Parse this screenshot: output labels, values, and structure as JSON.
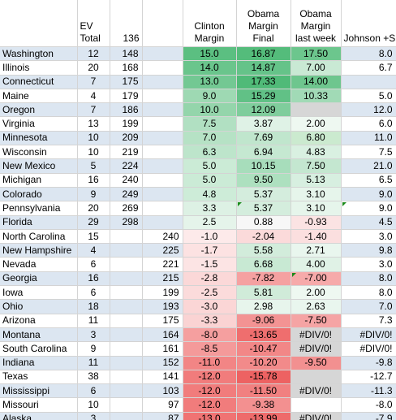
{
  "header": {
    "state": "",
    "ev_total": "EV\nTotal",
    "running": "136",
    "extra": "",
    "clinton": "Clinton\nMargin",
    "obama_final": "Obama\nMargin\nFinal",
    "obama_last_week": "Obama\nMargin\nlast week",
    "johnson": "Johnson +S"
  },
  "rows": [
    {
      "state": "Washington",
      "ev": "12",
      "dem_total": "148",
      "rep_total": "",
      "clinton": "15.0",
      "obama_final": "16.87",
      "obama_lw": "17.50",
      "johnson": "8.0",
      "band": true,
      "c_clinton": "#5bbf81",
      "c_final": "#54bc7b",
      "c_lw": "#6cc68d"
    },
    {
      "state": "Illinois",
      "ev": "20",
      "dem_total": "168",
      "rep_total": "",
      "clinton": "14.0",
      "obama_final": "14.87",
      "obama_lw": "7.00",
      "johnson": "6.7",
      "band": false,
      "c_clinton": "#6ac58c",
      "c_final": "#65c389",
      "c_lw": "#c9e9d4"
    },
    {
      "state": "Connecticut",
      "ev": "7",
      "dem_total": "175",
      "rep_total": "",
      "clinton": "13.0",
      "obama_final": "17.33",
      "obama_lw": "14.00",
      "johnson": "",
      "band": true,
      "c_clinton": "#73c893",
      "c_final": "#50ba78",
      "c_lw": "#6ec68e"
    },
    {
      "state": "Maine",
      "ev": "4",
      "dem_total": "179",
      "rep_total": "",
      "clinton": "9.0",
      "obama_final": "15.29",
      "obama_lw": "10.33",
      "johnson": "5.0",
      "band": false,
      "c_clinton": "#9ed9b3",
      "c_final": "#61c186",
      "c_lw": "#a1dab6"
    },
    {
      "state": "Oregon",
      "ev": "7",
      "dem_total": "186",
      "rep_total": "",
      "clinton": "10.0",
      "obama_final": "12.09",
      "obama_lw": "",
      "johnson": "12.0",
      "band": true,
      "c_clinton": "#94d5ab",
      "c_final": "#7fcd9c",
      "c_lw": "#d6d6d6"
    },
    {
      "state": "Virginia",
      "ev": "13",
      "dem_total": "199",
      "rep_total": "",
      "clinton": "7.5",
      "obama_final": "3.87",
      "obama_lw": "2.00",
      "johnson": "6.0",
      "band": false,
      "c_clinton": "#b1e0c2",
      "c_final": "#dff2e6",
      "c_lw": "#eef8f1"
    },
    {
      "state": "Minnesota",
      "ev": "10",
      "dem_total": "209",
      "rep_total": "",
      "clinton": "7.0",
      "obama_final": "7.69",
      "obama_lw": "6.80",
      "johnson": "11.0",
      "band": true,
      "c_clinton": "#b6e2c5",
      "c_final": "#c0e6cd",
      "c_lw": "#cbeacf"
    },
    {
      "state": "Wisconsin",
      "ev": "10",
      "dem_total": "219",
      "rep_total": "",
      "clinton": "6.3",
      "obama_final": "6.94",
      "obama_lw": "4.83",
      "johnson": "7.5",
      "band": false,
      "c_clinton": "#bde5cb",
      "c_final": "#c5e8d1",
      "c_lw": "#d9f0e1"
    },
    {
      "state": "New Mexico",
      "ev": "5",
      "dem_total": "224",
      "rep_total": "",
      "clinton": "5.0",
      "obama_final": "10.15",
      "obama_lw": "7.50",
      "johnson": "21.0",
      "band": true,
      "c_clinton": "#cbebd6",
      "c_final": "#a7ddbb",
      "c_lw": "#c4e7d0"
    },
    {
      "state": "Michigan",
      "ev": "16",
      "dem_total": "240",
      "rep_total": "",
      "clinton": "5.0",
      "obama_final": "9.50",
      "obama_lw": "5.13",
      "johnson": "6.5",
      "band": false,
      "c_clinton": "#cbebd6",
      "c_final": "#ade0bf",
      "c_lw": "#d7efe0"
    },
    {
      "state": "Colorado",
      "ev": "9",
      "dem_total": "249",
      "rep_total": "",
      "clinton": "4.8",
      "obama_final": "5.37",
      "obama_lw": "3.10",
      "johnson": "9.0",
      "band": true,
      "c_clinton": "#cdecd8",
      "c_final": "#d4eddd",
      "c_lw": "#e6f5eb"
    },
    {
      "state": "Pennsylvania",
      "ev": "20",
      "dem_total": "269",
      "rep_total": "",
      "clinton": "3.3",
      "obama_final": "5.37",
      "obama_lw": "3.10",
      "johnson": "9.0",
      "band": false,
      "c_clinton": "#ddf1e4",
      "c_final": "#d4eddd",
      "c_lw": "#e6f5eb"
    },
    {
      "state": "Florida",
      "ev": "29",
      "dem_total": "298",
      "rep_total": "",
      "clinton": "2.5",
      "obama_final": "0.88",
      "obama_lw": "-0.93",
      "johnson": "4.5",
      "band": true,
      "c_clinton": "#e5f4ea",
      "c_final": "#f7f7f7",
      "c_lw": "#fbe3e3"
    },
    {
      "state": "North Carolina",
      "ev": "15",
      "dem_total": "",
      "rep_total": "240",
      "clinton": "-1.0",
      "obama_final": "-2.04",
      "obama_lw": "-1.40",
      "johnson": "3.0",
      "band": false,
      "c_clinton": "#fdeaea",
      "c_final": "#fbdada",
      "c_lw": "#fbdfdf"
    },
    {
      "state": "New Hampshire",
      "ev": "4",
      "dem_total": "",
      "rep_total": "225",
      "clinton": "-1.7",
      "obama_final": "5.58",
      "obama_lw": "2.71",
      "johnson": "9.8",
      "band": true,
      "c_clinton": "#fce2e2",
      "c_final": "#d2ecdb",
      "c_lw": "#e9f6ee"
    },
    {
      "state": "Nevada",
      "ev": "6",
      "dem_total": "",
      "rep_total": "221",
      "clinton": "-1.5",
      "obama_final": "6.68",
      "obama_lw": "4.00",
      "johnson": "3.0",
      "band": false,
      "c_clinton": "#fce4e4",
      "c_final": "#c8e9d3",
      "c_lw": "#e0f2e6"
    },
    {
      "state": "Georgia",
      "ev": "16",
      "dem_total": "",
      "rep_total": "215",
      "clinton": "-2.8",
      "obama_final": "-7.82",
      "obama_lw": "-7.00",
      "johnson": "8.0",
      "band": true,
      "c_clinton": "#fbd8d8",
      "c_final": "#f5a1a1",
      "c_lw": "#f6aaaa"
    },
    {
      "state": "Iowa",
      "ev": "6",
      "dem_total": "",
      "rep_total": "199",
      "clinton": "-2.5",
      "obama_final": "5.81",
      "obama_lw": "2.00",
      "johnson": "8.0",
      "band": false,
      "c_clinton": "#fbdbdb",
      "c_final": "#d0ebd9",
      "c_lw": "#eef8f1"
    },
    {
      "state": "Ohio",
      "ev": "18",
      "dem_total": "",
      "rep_total": "193",
      "clinton": "-3.0",
      "obama_final": "2.98",
      "obama_lw": "2.63",
      "johnson": "7.0",
      "band": true,
      "c_clinton": "#fbd6d6",
      "c_final": "#e7f5ec",
      "c_lw": "#e9f6ee"
    },
    {
      "state": "Arizona",
      "ev": "11",
      "dem_total": "",
      "rep_total": "175",
      "clinton": "-3.3",
      "obama_final": "-9.06",
      "obama_lw": "-7.50",
      "johnson": "7.3",
      "band": false,
      "c_clinton": "#fad3d3",
      "c_final": "#f39393",
      "c_lw": "#f5a4a4"
    },
    {
      "state": "Montana",
      "ev": "3",
      "dem_total": "",
      "rep_total": "164",
      "clinton": "-8.0",
      "obama_final": "-13.65",
      "obama_lw": "#DIV/0!",
      "johnson": "#DIV/0!",
      "band": true,
      "c_clinton": "#f59f9f",
      "c_final": "#ef6e6e",
      "c_lw": "#d6d6d6"
    },
    {
      "state": "South Carolina",
      "ev": "9",
      "dem_total": "",
      "rep_total": "161",
      "clinton": "-8.5",
      "obama_final": "-10.47",
      "obama_lw": "#DIV/0!",
      "johnson": "#DIV/0!",
      "band": false,
      "c_clinton": "#f49a9a",
      "c_final": "#f28787",
      "c_lw": "#d6d6d6"
    },
    {
      "state": "Indiana",
      "ev": "11",
      "dem_total": "",
      "rep_total": "152",
      "clinton": "-11.0",
      "obama_final": "-10.20",
      "obama_lw": "-9.50",
      "johnson": "-9.8",
      "band": true,
      "c_clinton": "#f28585",
      "c_final": "#f28a8a",
      "c_lw": "#f29090"
    },
    {
      "state": "Texas",
      "ev": "38",
      "dem_total": "",
      "rep_total": "141",
      "clinton": "-12.0",
      "obama_final": "-15.78",
      "obama_lw": "",
      "johnson": "-12.7",
      "band": false,
      "c_clinton": "#f17c7c",
      "c_final": "#ed6262",
      "c_lw": "#d6d6d6"
    },
    {
      "state": "Mississippi",
      "ev": "6",
      "dem_total": "",
      "rep_total": "103",
      "clinton": "-12.0",
      "obama_final": "-11.50",
      "obama_lw": "#DIV/0!",
      "johnson": "-11.3",
      "band": true,
      "c_clinton": "#f17c7c",
      "c_final": "#f18080",
      "c_lw": "#d6d6d6"
    },
    {
      "state": "Missouri",
      "ev": "10",
      "dem_total": "",
      "rep_total": "97",
      "clinton": "-12.0",
      "obama_final": "-9.38",
      "obama_lw": "",
      "johnson": "-8.0",
      "band": false,
      "c_clinton": "#f17c7c",
      "c_final": "#f39090",
      "c_lw": "#ffffff"
    },
    {
      "state": "Alaska",
      "ev": "3",
      "dem_total": "",
      "rep_total": "87",
      "clinton": "-13.0",
      "obama_final": "-13.99",
      "obama_lw": "#DIV/0!",
      "johnson": "-7.9",
      "band": true,
      "c_clinton": "#f07373",
      "c_final": "#ee6b6b",
      "c_lw": "#d6d6d6"
    }
  ],
  "corner_marks": [
    "Pennsylvania.obama_final",
    "Pennsylvania.johnson",
    "Georgia.obama_lw"
  ]
}
